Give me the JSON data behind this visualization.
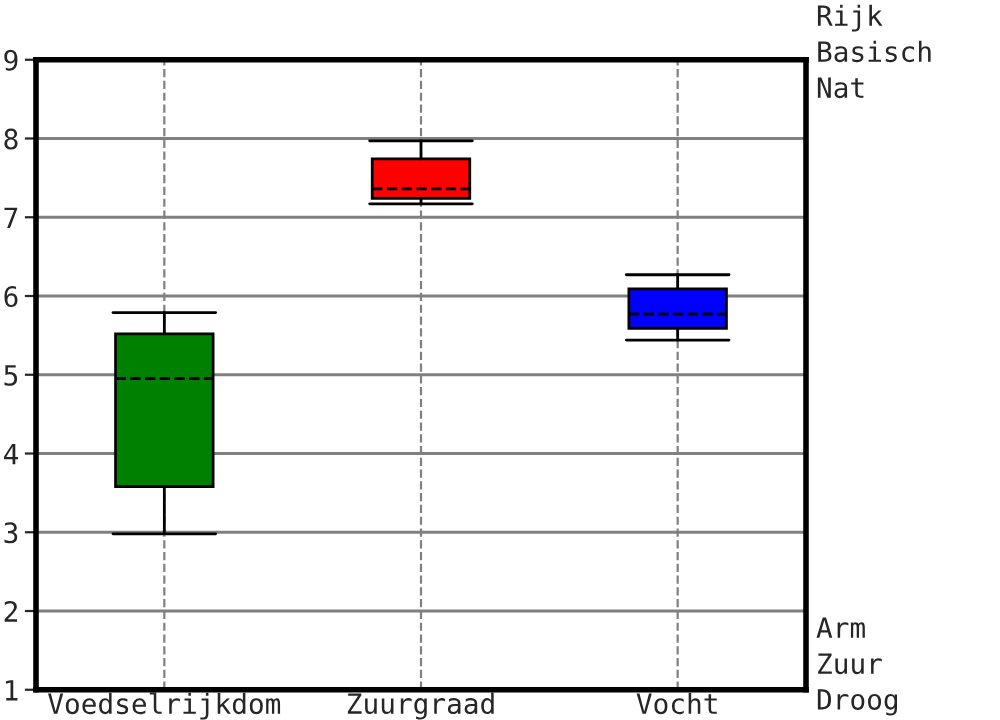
{
  "chart_data": {
    "type": "box",
    "categories": [
      "Voedselrijkdom",
      "Zuurgraad",
      "Vocht"
    ],
    "boxes": [
      {
        "low": 2.98,
        "q1": 3.58,
        "median": 4.95,
        "q3": 5.52,
        "high": 5.79
      },
      {
        "low": 7.17,
        "q1": 7.24,
        "median": 7.36,
        "q3": 7.74,
        "high": 7.97
      },
      {
        "low": 5.44,
        "q1": 5.59,
        "median": 5.77,
        "q3": 6.09,
        "high": 6.27
      }
    ],
    "colors": [
      "#008000",
      "#ff0000",
      "#0000ff"
    ],
    "ylim": [
      1,
      9
    ],
    "yticks": [
      1,
      2,
      3,
      4,
      5,
      6,
      7,
      8,
      9
    ],
    "grid": true,
    "annotations": [
      "Rijk",
      "Basisch",
      "Nat",
      "Arm",
      "Zuur",
      "Droog"
    ]
  }
}
